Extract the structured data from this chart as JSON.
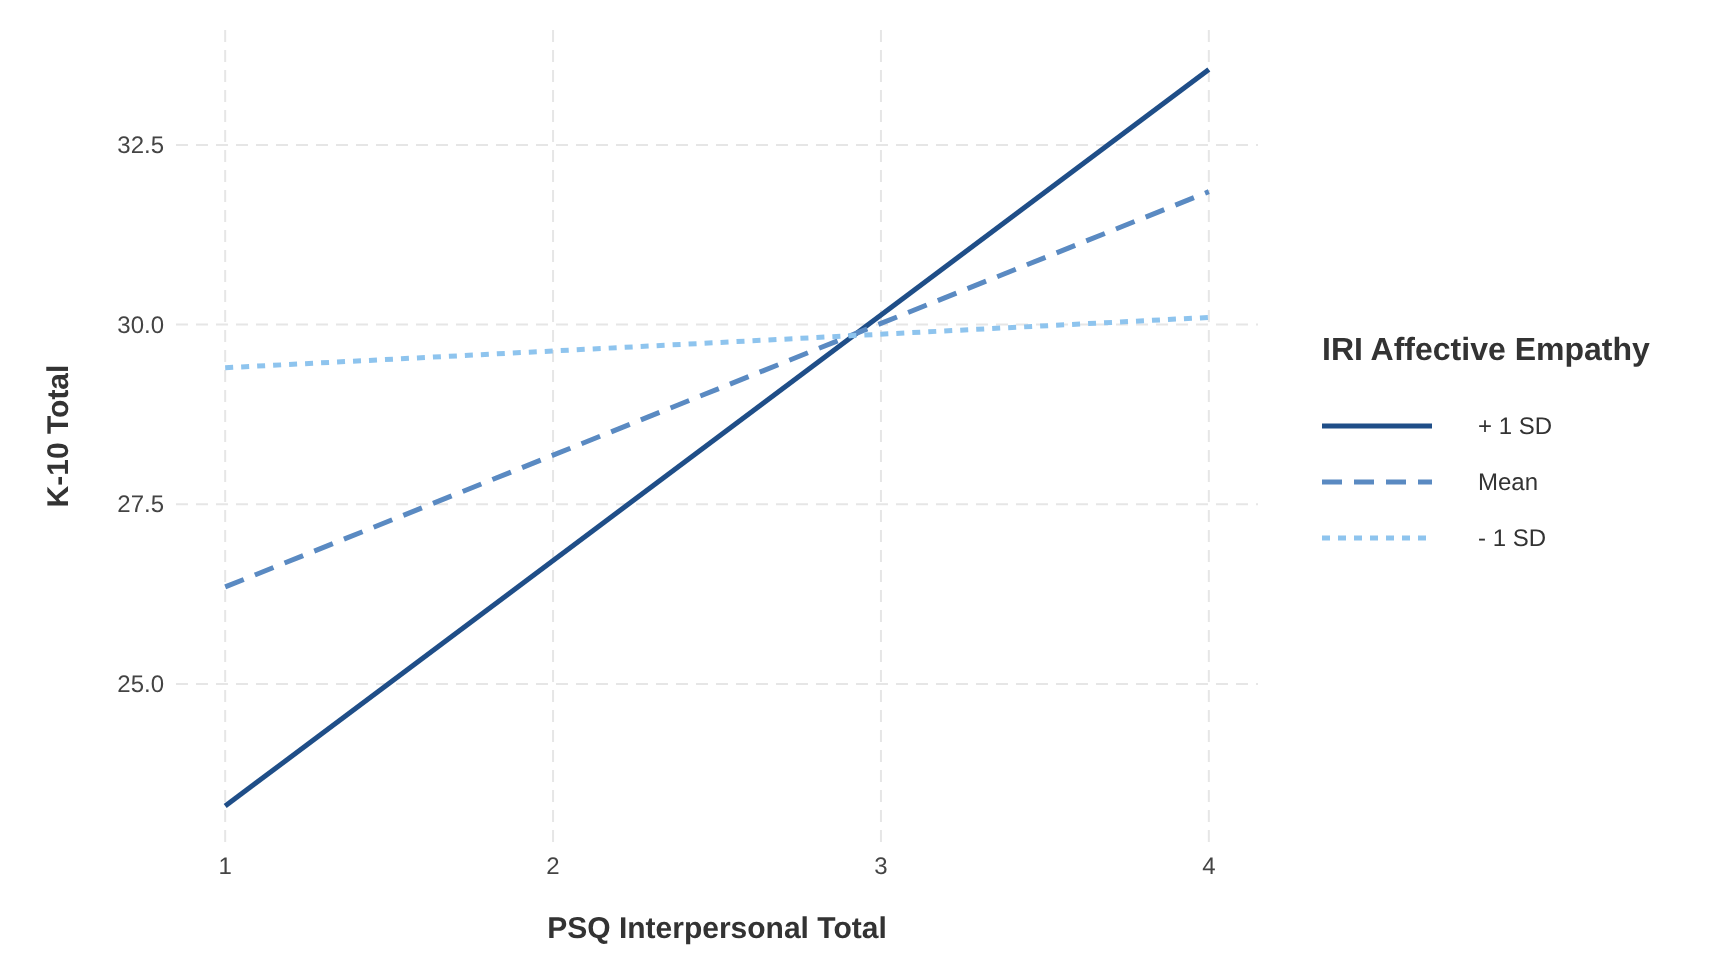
{
  "chart_data": {
    "type": "line",
    "xlabel": "PSQ Interpersonal Total",
    "ylabel": "K-10 Total",
    "legend_title": "IRI Affective Empathy",
    "legend": "right",
    "grid": true,
    "x": [
      1,
      4
    ],
    "series": [
      {
        "name": "+ 1 SD",
        "color": "#1f4e88",
        "line_style": "solid",
        "values": [
          23.3,
          33.55
        ]
      },
      {
        "name": "Mean",
        "color": "#5a8ac2",
        "line_style": "dashed",
        "values": [
          26.35,
          31.85
        ]
      },
      {
        "name": "- 1 SD",
        "color": "#8ec4ee",
        "line_style": "dotted",
        "values": [
          29.4,
          30.1
        ]
      }
    ],
    "xlim": [
      0.85,
      4.15
    ],
    "xticks": [
      1,
      2,
      3,
      4
    ],
    "ylim": [
      22.8,
      34.1
    ],
    "yticks": [
      {
        "value": 25,
        "label": "25.0"
      },
      {
        "value": 27.5,
        "label": "27.5"
      },
      {
        "value": 30,
        "label": "30.0"
      },
      {
        "value": 32.5,
        "label": "32.5"
      }
    ]
  }
}
